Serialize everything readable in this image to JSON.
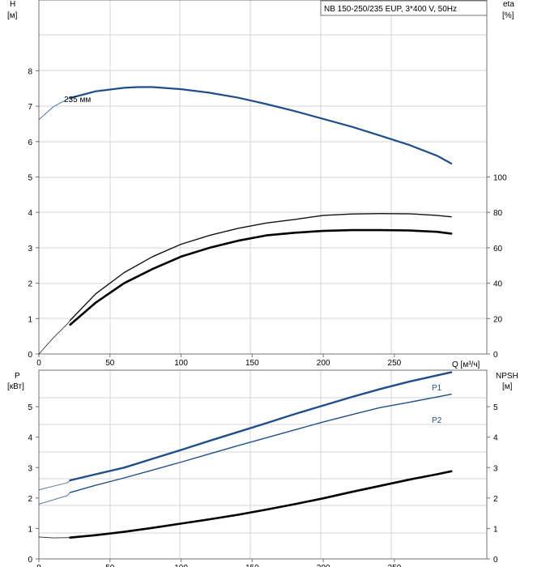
{
  "chart_data": [
    {
      "type": "line",
      "title": "NB 150-250/235 EUP, 3*400 V, 50Hz",
      "x_axis": {
        "label": "Q [м³/ч]",
        "ticks": [
          "0",
          "50",
          "100",
          "150",
          "200",
          "250"
        ],
        "range": [
          0,
          315
        ]
      },
      "y_left": {
        "label_line1": "H",
        "label_line2": "[м]",
        "ticks": [
          "0",
          "1",
          "2",
          "3",
          "4",
          "5",
          "6",
          "7",
          "8"
        ],
        "range": [
          0,
          10
        ]
      },
      "y_right": {
        "label_line1": "eta",
        "label_line2": "[%]",
        "ticks": [
          "0",
          "20",
          "40",
          "60",
          "80",
          "100"
        ],
        "range": [
          0,
          200
        ]
      },
      "grid": true,
      "series": [
        {
          "name": "235 мм",
          "axis": "left",
          "color": "#1f4e8c",
          "x": [
            0,
            10,
            20,
            22,
            40,
            60,
            70,
            80,
            100,
            120,
            140,
            160,
            180,
            200,
            220,
            240,
            260,
            280,
            290
          ],
          "y": [
            6.62,
            6.98,
            7.2,
            7.23,
            7.42,
            7.52,
            7.54,
            7.54,
            7.48,
            7.38,
            7.24,
            7.06,
            6.86,
            6.64,
            6.42,
            6.17,
            5.91,
            5.6,
            5.38
          ]
        },
        {
          "axis": "right",
          "color": "#111111",
          "x": [
            0,
            10,
            20,
            22,
            40,
            60,
            80,
            100,
            120,
            140,
            160,
            180,
            200,
            220,
            240,
            260,
            280,
            290
          ],
          "y": [
            0,
            9,
            17,
            19,
            34,
            46,
            55,
            62,
            67,
            71,
            74,
            76,
            78.3,
            79.1,
            79.3,
            79.2,
            78.3,
            77.5
          ]
        },
        {
          "axis": "right",
          "color": "#000000",
          "x": [
            22,
            40,
            60,
            80,
            100,
            120,
            140,
            160,
            180,
            200,
            220,
            240,
            260,
            280,
            290
          ],
          "y": [
            16.5,
            29,
            40,
            48,
            55,
            60,
            64,
            67,
            68.5,
            69.5,
            70,
            70,
            69.8,
            69,
            68
          ]
        }
      ]
    },
    {
      "type": "line",
      "x_axis": {
        "ticks": [
          "0",
          "50",
          "100",
          "150",
          "200",
          "250"
        ],
        "range": [
          0,
          315
        ]
      },
      "y_left": {
        "label_line1": "P",
        "label_line2": "[кВт]",
        "ticks": [
          "0",
          "1",
          "2",
          "3",
          "4",
          "5"
        ],
        "range": [
          0,
          6.2
        ]
      },
      "y_right": {
        "label_line1": "NPSH",
        "label_line2": "[м]",
        "ticks": [
          "0",
          "1",
          "2",
          "3",
          "4",
          "5"
        ],
        "range": [
          0,
          6.2
        ]
      },
      "grid": true,
      "series": [
        {
          "name": "P1",
          "axis": "left",
          "color": "#1f4e8c",
          "x": [
            0,
            20,
            22,
            40,
            60,
            80,
            100,
            120,
            140,
            160,
            180,
            200,
            220,
            240,
            260,
            280,
            290
          ],
          "y": [
            2.27,
            2.5,
            2.58,
            2.78,
            3.0,
            3.29,
            3.58,
            3.88,
            4.17,
            4.46,
            4.76,
            5.04,
            5.32,
            5.58,
            5.82,
            6.03,
            6.13
          ]
        },
        {
          "name": "P2",
          "axis": "left",
          "color": "#1f4e8c",
          "x": [
            0,
            20,
            22,
            40,
            60,
            80,
            100,
            120,
            140,
            160,
            180,
            200,
            220,
            240,
            260,
            280,
            290
          ],
          "y": [
            1.8,
            2.08,
            2.18,
            2.42,
            2.66,
            2.92,
            3.18,
            3.45,
            3.72,
            3.98,
            4.24,
            4.5,
            4.74,
            4.97,
            5.14,
            5.32,
            5.41
          ]
        },
        {
          "axis": "right",
          "color": "#000000",
          "x": [
            0,
            10,
            22,
            40,
            60,
            80,
            100,
            120,
            140,
            160,
            180,
            200,
            220,
            240,
            260,
            280,
            290
          ],
          "y": [
            0.72,
            0.69,
            0.7,
            0.78,
            0.89,
            1.02,
            1.16,
            1.3,
            1.45,
            1.62,
            1.8,
            1.99,
            2.2,
            2.4,
            2.6,
            2.78,
            2.88
          ]
        }
      ]
    }
  ]
}
